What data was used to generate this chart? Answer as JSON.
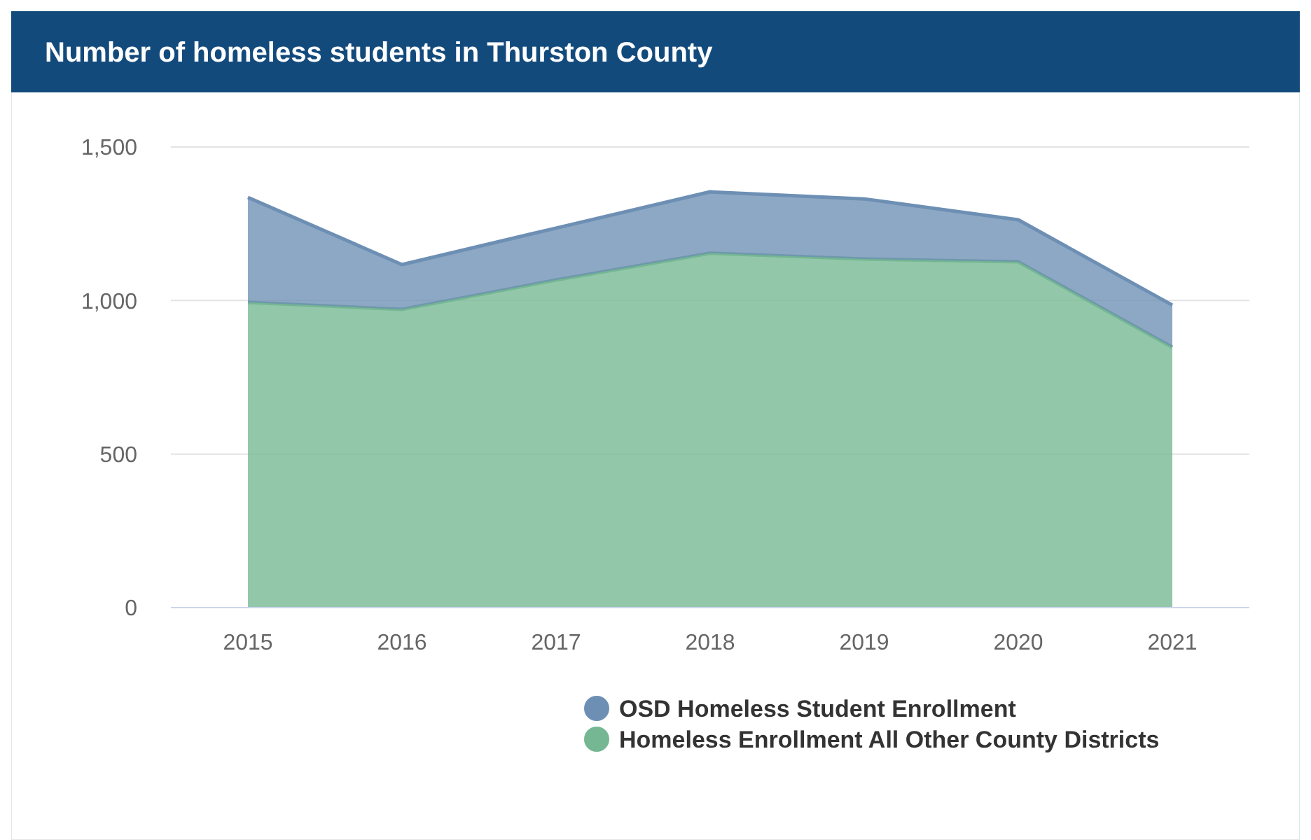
{
  "chart_data": {
    "type": "area",
    "title": "Number of homeless students in Thurston County",
    "stacked": true,
    "categories": [
      "2015",
      "2016",
      "2017",
      "2018",
      "2019",
      "2020",
      "2021"
    ],
    "series": [
      {
        "name": "Homeless Enrollment All Other County Districts",
        "color": "#74b792",
        "values": [
          994,
          971,
          1067,
          1154,
          1135,
          1126,
          848
        ]
      },
      {
        "name": "OSD Homeless Student Enrollment",
        "color": "#6d8fb4",
        "values": [
          342,
          146,
          169,
          200,
          196,
          137,
          137
        ]
      }
    ],
    "ylim": [
      0,
      1500
    ],
    "yticks": [
      0,
      500,
      {
        "value": 1000,
        "label": "1,000"
      },
      {
        "value": 1500,
        "label": "1,500"
      }
    ],
    "grid": "y",
    "legend": "bottom right"
  }
}
